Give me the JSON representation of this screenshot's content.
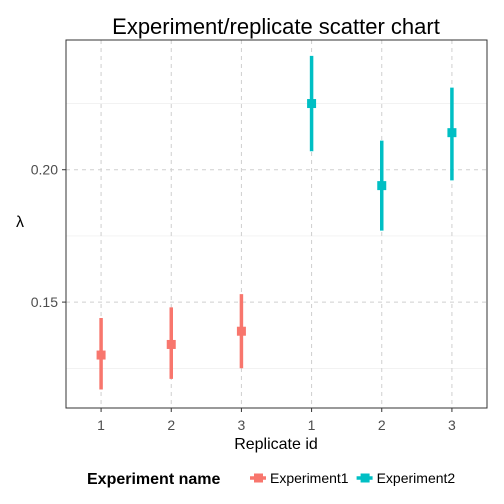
{
  "chart_data": {
    "type": "scatter",
    "title": "Experiment/replicate scatter chart",
    "xlabel": "Replicate id",
    "ylabel": "λ",
    "ylim": [
      0.11,
      0.249
    ],
    "y_ticks": [
      0.15,
      0.2
    ],
    "y_tick_labels": [
      "0.15",
      "0.20"
    ],
    "grid": true,
    "legend_title": "Experiment name",
    "legend_position": "bottom",
    "x_tick_labels": [
      "1",
      "2",
      "3",
      "1",
      "2",
      "3"
    ],
    "series": [
      {
        "name": "Experiment1",
        "color": "#F8766D",
        "points": [
          {
            "x": "1",
            "y": 0.13,
            "ymin": 0.117,
            "ymax": 0.144
          },
          {
            "x": "2",
            "y": 0.134,
            "ymin": 0.121,
            "ymax": 0.148
          },
          {
            "x": "3",
            "y": 0.139,
            "ymin": 0.125,
            "ymax": 0.153
          }
        ]
      },
      {
        "name": "Experiment2",
        "color": "#00BFC4",
        "points": [
          {
            "x": "1",
            "y": 0.225,
            "ymin": 0.207,
            "ymax": 0.243
          },
          {
            "x": "2",
            "y": 0.194,
            "ymin": 0.177,
            "ymax": 0.211
          },
          {
            "x": "3",
            "y": 0.214,
            "ymin": 0.196,
            "ymax": 0.231
          }
        ]
      }
    ]
  }
}
